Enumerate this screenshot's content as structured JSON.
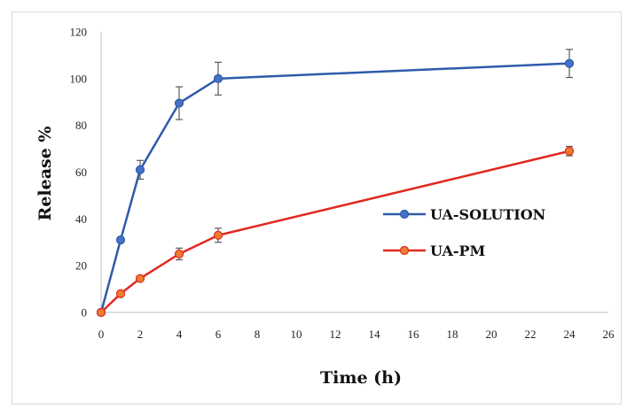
{
  "chart_data": {
    "type": "line",
    "title": "",
    "xlabel": "Time (h)",
    "ylabel": "Release %",
    "xlim": [
      0,
      26
    ],
    "ylim": [
      0,
      120
    ],
    "x_ticks": [
      0,
      2,
      4,
      6,
      8,
      10,
      12,
      14,
      16,
      18,
      20,
      22,
      24,
      26
    ],
    "y_ticks": [
      0,
      20,
      40,
      60,
      80,
      100,
      120
    ],
    "grid": false,
    "legend_position": "right",
    "series": [
      {
        "name": "UA-SOLUTION",
        "color": "#2e5bab",
        "fill": "#4472c4",
        "x": [
          0,
          1,
          2,
          4,
          6,
          24
        ],
        "y": [
          0,
          31,
          61,
          89.5,
          100,
          106.5
        ],
        "error": [
          0,
          0,
          4,
          7,
          7,
          6
        ]
      },
      {
        "name": "UA-PM",
        "color": "#e02a20",
        "fill": "#ed7d31",
        "x": [
          0,
          1,
          2,
          4,
          6,
          24
        ],
        "y": [
          0,
          8,
          14.5,
          25,
          33,
          69
        ],
        "error": [
          0,
          0,
          0,
          2.5,
          3,
          2
        ]
      }
    ]
  }
}
